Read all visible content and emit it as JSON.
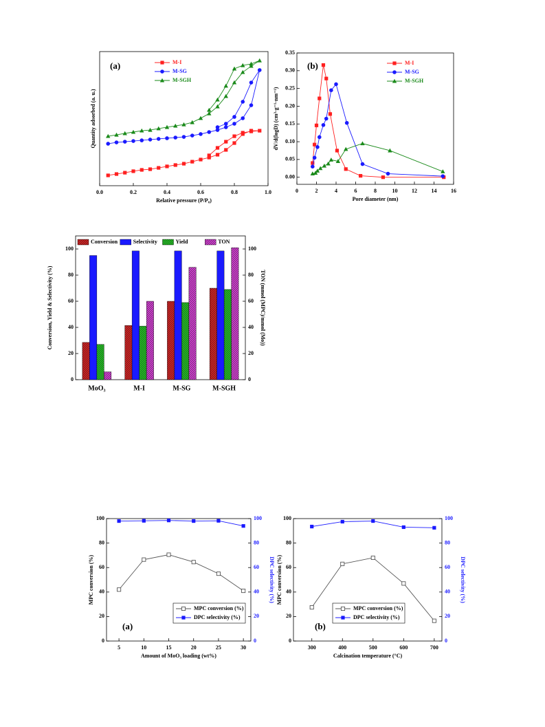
{
  "chart_data": [
    {
      "type": "line",
      "label": "(a)",
      "xlabel": "Relative pressure (P/P₀)",
      "ylabel": "Quantity adsorbed (a. u.)",
      "xlim": [
        0,
        1
      ],
      "xticks": [
        {
          "value": 0,
          "label": "0.0"
        },
        0.2,
        0.4,
        0.6,
        0.8,
        {
          "value": 1,
          "label": "1.0"
        }
      ],
      "ylim": [
        0,
        100
      ],
      "legend": "upper left",
      "series": [
        {
          "name": "M-I",
          "color": "#ff2020",
          "marker": "square",
          "x": [
            0.05,
            0.1,
            0.15,
            0.2,
            0.25,
            0.3,
            0.35,
            0.4,
            0.45,
            0.5,
            0.55,
            0.6,
            0.65,
            0.7,
            0.75,
            0.8,
            0.85,
            0.9,
            0.95,
            0.9,
            0.85,
            0.8,
            0.75,
            0.7,
            0.65
          ],
          "values": [
            7.7,
            8.7,
            9.7,
            10.8,
            11.8,
            12.3,
            13.3,
            14.4,
            15.4,
            16.4,
            17.9,
            19.5,
            21.0,
            23.1,
            26.7,
            31.8,
            38.5,
            41.0,
            41.0,
            40.5,
            39.5,
            36.9,
            32.8,
            28.2,
            22.6
          ]
        },
        {
          "name": "M-SG",
          "color": "#1a1aff",
          "marker": "circle",
          "x": [
            0.05,
            0.1,
            0.15,
            0.2,
            0.25,
            0.3,
            0.35,
            0.4,
            0.45,
            0.5,
            0.55,
            0.6,
            0.65,
            0.7,
            0.75,
            0.8,
            0.85,
            0.9,
            0.95,
            0.9,
            0.85,
            0.8,
            0.75,
            0.7
          ],
          "values": [
            31.3,
            32.3,
            32.8,
            33.3,
            33.8,
            34.4,
            34.9,
            35.4,
            35.9,
            36.4,
            37.4,
            38.5,
            40.0,
            41.5,
            43.6,
            46.2,
            50.3,
            60.0,
            86.2,
            76.9,
            62.6,
            51.3,
            46.2,
            43.6
          ]
        },
        {
          "name": "M-SGH",
          "color": "#1a8a1a",
          "marker": "triangle",
          "x": [
            0.05,
            0.1,
            0.15,
            0.2,
            0.25,
            0.3,
            0.35,
            0.4,
            0.45,
            0.5,
            0.55,
            0.6,
            0.65,
            0.7,
            0.75,
            0.8,
            0.85,
            0.9,
            0.95,
            0.9,
            0.85,
            0.8,
            0.75,
            0.7,
            0.65
          ],
          "values": [
            36.9,
            37.9,
            39.0,
            40.0,
            41.0,
            41.5,
            42.6,
            43.6,
            44.6,
            45.6,
            47.2,
            50.3,
            53.8,
            59.0,
            66.7,
            76.9,
            84.6,
            89.2,
            93.3,
            90.8,
            89.7,
            87.2,
            74.4,
            64.1,
            56.4
          ]
        }
      ]
    },
    {
      "type": "line",
      "label": "(b)",
      "xlabel": "Pore diameter (nm)",
      "ylabel": "dV/d(logD) (cm³·g⁻¹·nm⁻¹)",
      "xlim": [
        0,
        16
      ],
      "xticks": [
        0,
        2,
        4,
        6,
        8,
        10,
        12,
        14,
        16
      ],
      "ylim": [
        -0.02,
        0.35
      ],
      "yticks": [
        {
          "value": 0,
          "label": "0.00"
        },
        0.05,
        {
          "value": 0.1,
          "label": "0.10"
        },
        0.15,
        {
          "value": 0.2,
          "label": "0.20"
        },
        0.25,
        {
          "value": 0.3,
          "label": "0.30"
        },
        0.35
      ],
      "legend": "upper right",
      "series": [
        {
          "name": "M-I",
          "color": "#ff2020",
          "marker": "square",
          "x": [
            1.6,
            1.8,
            2.0,
            2.3,
            2.7,
            3.0,
            3.4,
            4.1,
            5.0,
            6.5,
            8.8,
            15.0
          ],
          "values": [
            0.04,
            0.092,
            0.146,
            0.222,
            0.316,
            0.278,
            0.178,
            0.075,
            0.023,
            0.004,
            0.0,
            0.0
          ]
        },
        {
          "name": "M-SG",
          "color": "#1a1aff",
          "marker": "circle",
          "x": [
            1.6,
            1.8,
            2.1,
            2.3,
            2.7,
            3.0,
            3.5,
            4.0,
            5.1,
            6.7,
            9.3,
            14.9
          ],
          "values": [
            0.03,
            0.055,
            0.085,
            0.113,
            0.147,
            0.165,
            0.245,
            0.262,
            0.153,
            0.037,
            0.01,
            0.003
          ]
        },
        {
          "name": "M-SGH",
          "color": "#1a8a1a",
          "marker": "triangle",
          "x": [
            1.6,
            1.9,
            2.1,
            2.4,
            2.8,
            3.2,
            3.5,
            4.2,
            5.0,
            6.7,
            9.5,
            14.9
          ],
          "values": [
            0.01,
            0.012,
            0.018,
            0.025,
            0.032,
            0.038,
            0.049,
            0.045,
            0.079,
            0.095,
            0.075,
            0.016
          ]
        }
      ]
    },
    {
      "type": "bar",
      "ylabel": "Conversion, Yield & Selectivity (%)",
      "y2label": "TON (mmol (MPC)/mmol (Mo))",
      "categories": [
        "MoO₃",
        "M-I",
        "M-SG",
        "M-SGH"
      ],
      "ylim": [
        0,
        110
      ],
      "yticks": [
        0,
        20,
        40,
        60,
        80,
        100
      ],
      "y2lim": [
        0,
        110
      ],
      "y2ticks": [
        0,
        20,
        40,
        60,
        80,
        100
      ],
      "legend": "upper center",
      "series": [
        {
          "name": "Conversion",
          "color": "#e02020",
          "hatch": "/",
          "values": [
            28.5,
            41.5,
            60,
            70
          ]
        },
        {
          "name": "Selectivity",
          "color": "#1a1aff",
          "values": [
            95,
            98.5,
            98.5,
            98.5
          ]
        },
        {
          "name": "Yield",
          "color": "#22cc22",
          "hatch": "\\",
          "values": [
            27,
            41,
            59,
            69
          ]
        },
        {
          "name": "TON",
          "color": "#e040e0",
          "hatch": "/",
          "axis": "y2",
          "values": [
            6,
            60,
            86,
            101
          ]
        }
      ]
    },
    {
      "type": "line",
      "label": "(a)",
      "xlabel": "Amount of MoO₃ loading (wt%)",
      "ylabel": "MPC conversion (%)",
      "y2label": "DPC selectivity (%)",
      "x": [
        5,
        10,
        15,
        20,
        25,
        30
      ],
      "xlim": [
        2.5,
        31.5
      ],
      "xticks": [
        5,
        10,
        15,
        20,
        25,
        30
      ],
      "ylim": [
        0,
        100
      ],
      "yticks": [
        0,
        20,
        40,
        60,
        80,
        100
      ],
      "y2lim": [
        0,
        100
      ],
      "y2ticks": [
        0,
        20,
        40,
        60,
        80,
        100
      ],
      "legend": "lower right",
      "legend_frame": true,
      "series": [
        {
          "name": "MPC conversion (%)",
          "color": "#555555",
          "marker": "open-square",
          "values": [
            42,
            66.5,
            70.5,
            64.5,
            55,
            41
          ]
        },
        {
          "name": "DPC selectivity (%)",
          "color": "#1a1aff",
          "marker": "square",
          "axis": "y2",
          "values": [
            98,
            98.2,
            98.5,
            98,
            98.2,
            94
          ]
        }
      ]
    },
    {
      "type": "line",
      "label": "(b)",
      "xlabel": "Calcination temperature (°C)",
      "ylabel": "MPC conversion (%)",
      "y2label": "DPC selectivity (%)",
      "x": [
        300,
        400,
        500,
        600,
        700
      ],
      "xlim": [
        240,
        725
      ],
      "xticks": [
        300,
        400,
        500,
        600,
        700
      ],
      "ylim": [
        0,
        100
      ],
      "yticks": [
        0,
        20,
        40,
        60,
        80,
        100
      ],
      "y2lim": [
        0,
        100
      ],
      "y2ticks": [
        0,
        20,
        40,
        60,
        80,
        100
      ],
      "legend": "lower right",
      "legend_frame": true,
      "series": [
        {
          "name": "MPC conversion (%)",
          "color": "#555555",
          "marker": "open-square",
          "values": [
            27.5,
            63,
            68,
            47,
            16.5
          ]
        },
        {
          "name": "DPC selectivity (%)",
          "color": "#1a1aff",
          "marker": "square",
          "axis": "y2",
          "values": [
            93.5,
            97.5,
            98,
            93,
            92.5
          ]
        }
      ]
    }
  ]
}
